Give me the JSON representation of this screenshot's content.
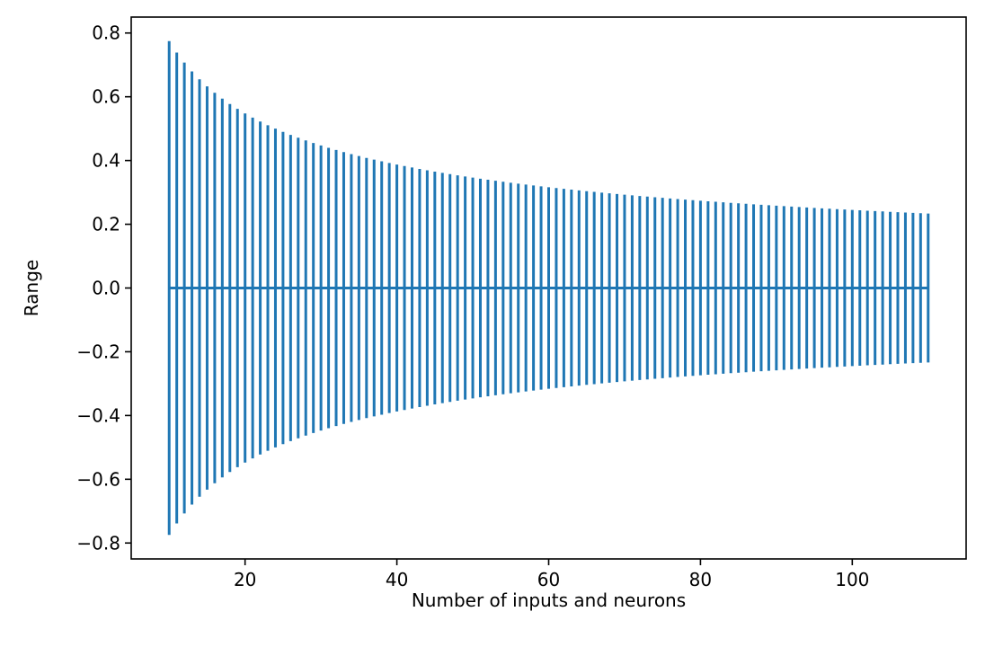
{
  "chart_data": {
    "type": "errorbar",
    "xlabel": "Number of inputs and neurons",
    "ylabel": "Range",
    "xlim": [
      5,
      115
    ],
    "ylim": [
      -0.85,
      0.85
    ],
    "grid": false,
    "x": {
      "start": 10,
      "stop": 110,
      "step": 1
    },
    "series": [
      {
        "center": 0.0,
        "halfwidth_formula": "sqrt(6 / n)",
        "color": "#1f77b4"
      }
    ],
    "xticks": [
      {
        "value": 20,
        "label": "20"
      },
      {
        "value": 40,
        "label": "40"
      },
      {
        "value": 60,
        "label": "60"
      },
      {
        "value": 80,
        "label": "80"
      },
      {
        "value": 100,
        "label": "100"
      }
    ],
    "yticks": [
      {
        "value": -0.8,
        "label": "−0.8"
      },
      {
        "value": -0.6,
        "label": "−0.6"
      },
      {
        "value": -0.4,
        "label": "−0.4"
      },
      {
        "value": -0.2,
        "label": "−0.2"
      },
      {
        "value": 0.0,
        "label": "0.0"
      },
      {
        "value": 0.2,
        "label": "0.2"
      },
      {
        "value": 0.4,
        "label": "0.4"
      },
      {
        "value": 0.6,
        "label": "0.6"
      },
      {
        "value": 0.8,
        "label": "0.8"
      }
    ]
  }
}
